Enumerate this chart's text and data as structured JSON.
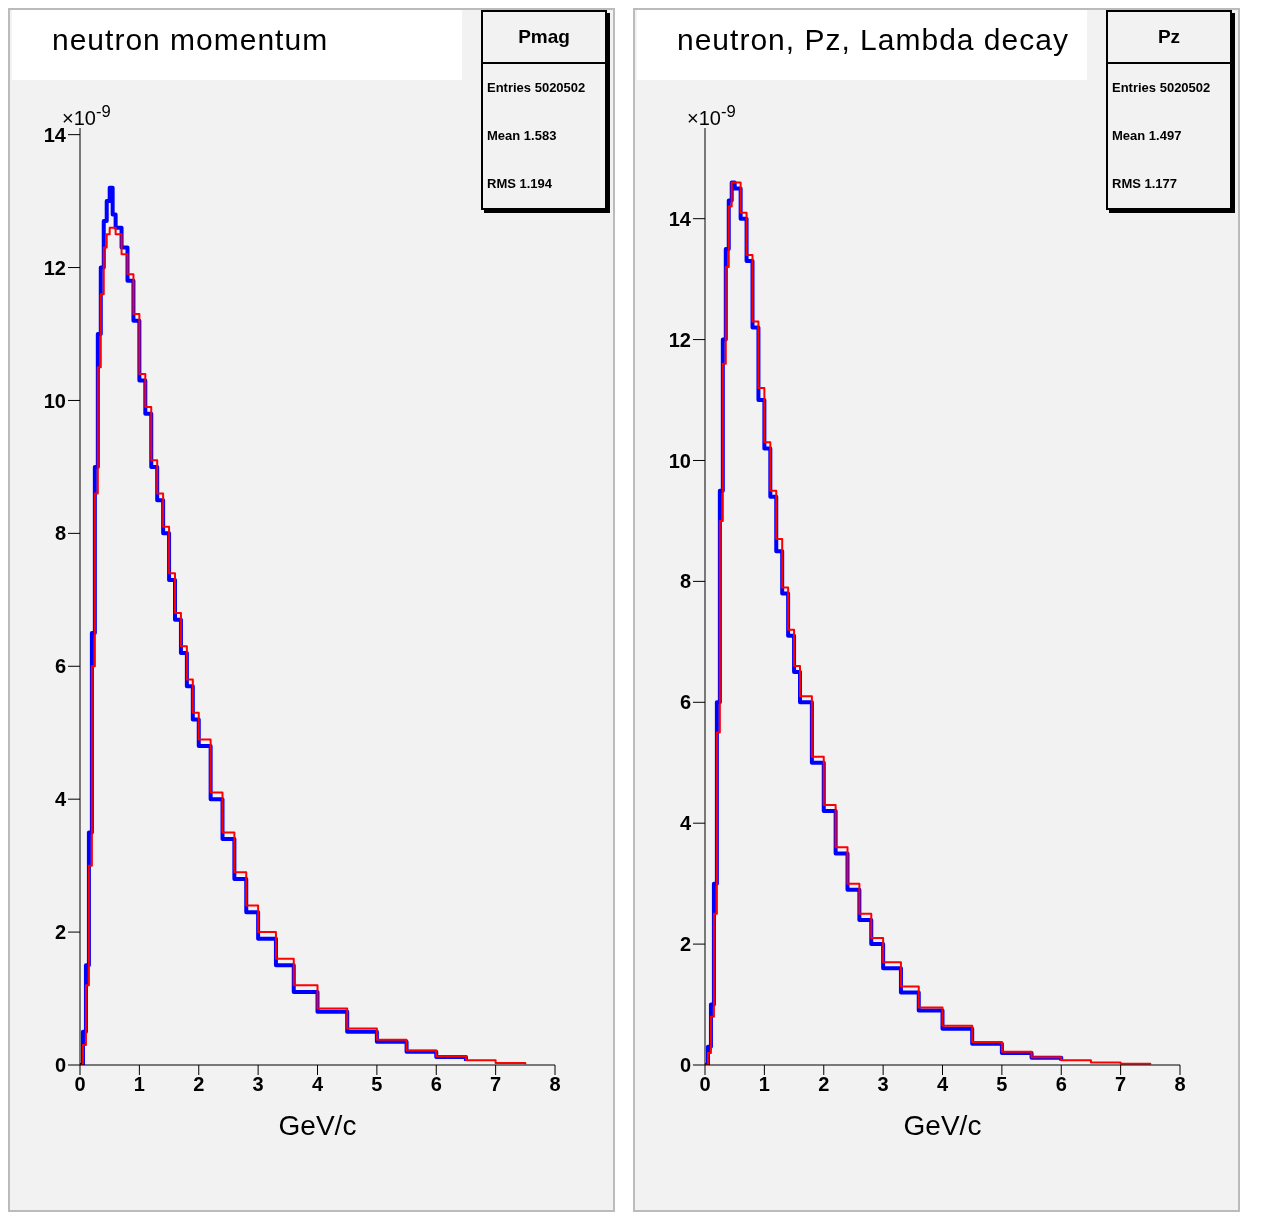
{
  "chart_data": [
    {
      "type": "step",
      "title": "neutron momentum",
      "xlabel": "GeV/c",
      "annotations": [
        "×10$^{-9}$",
        "Pmag",
        "Entries 5020502",
        "Mean 1.583",
        "RMS 1.194"
      ],
      "x": [
        0,
        0.05,
        0.1,
        0.15,
        0.2,
        0.25,
        0.3,
        0.35,
        0.4,
        0.45,
        0.5,
        0.55,
        0.6,
        0.7,
        0.8,
        0.9,
        1.0,
        1.1,
        1.2,
        1.3,
        1.4,
        1.5,
        1.6,
        1.7,
        1.8,
        1.9,
        2.0,
        2.2,
        2.4,
        2.6,
        2.8,
        3.0,
        3.3,
        3.6,
        4.0,
        4.5,
        5.0,
        5.5,
        6.0,
        6.5,
        7.0,
        7.5
      ],
      "series": [
        {
          "color": "#0000ff",
          "values": [
            0,
            0.5,
            1.5,
            3.5,
            6.5,
            9,
            11,
            12,
            12.7,
            13,
            13.2,
            12.8,
            12.6,
            12.3,
            11.8,
            11.2,
            10.3,
            9.8,
            9.0,
            8.5,
            8.0,
            7.3,
            6.7,
            6.2,
            5.7,
            5.2,
            4.8,
            4.0,
            3.4,
            2.8,
            2.3,
            1.9,
            1.5,
            1.1,
            0.8,
            0.5,
            0.35,
            0.2,
            0.12,
            0.06,
            null,
            null
          ]
        },
        {
          "color": "#ff0000",
          "values": [
            0,
            0.3,
            1.2,
            3,
            6,
            8.6,
            10.5,
            11.6,
            12.3,
            12.5,
            12.6,
            12.6,
            12.5,
            12.2,
            11.9,
            11.3,
            10.4,
            9.9,
            9.1,
            8.6,
            8.1,
            7.4,
            6.8,
            6.3,
            5.8,
            5.3,
            4.9,
            4.1,
            3.5,
            2.9,
            2.4,
            2.0,
            1.6,
            1.2,
            0.85,
            0.55,
            0.38,
            0.22,
            0.13,
            0.07,
            0.03,
            0.01
          ]
        }
      ],
      "xlim": [
        0,
        8
      ],
      "xticks": [
        0,
        1,
        2,
        3,
        4,
        5,
        6,
        7,
        8
      ],
      "ylim": [
        0,
        14.1
      ],
      "yticks": [
        0,
        2,
        4,
        6,
        8,
        10,
        12,
        14
      ]
    },
    {
      "type": "step",
      "title": "neutron, Pz, Lambda decay",
      "xlabel": "GeV/c",
      "annotations": [
        "×10$^{-9}$",
        "Pz",
        "Entries 5020502",
        "Mean 1.497",
        "RMS 1.177"
      ],
      "x": [
        0,
        0.05,
        0.1,
        0.15,
        0.2,
        0.25,
        0.3,
        0.35,
        0.4,
        0.45,
        0.5,
        0.6,
        0.7,
        0.8,
        0.9,
        1.0,
        1.1,
        1.2,
        1.3,
        1.4,
        1.5,
        1.6,
        1.8,
        2.0,
        2.2,
        2.4,
        2.6,
        2.8,
        3.0,
        3.3,
        3.6,
        4.0,
        4.5,
        5.0,
        5.5,
        6.0,
        6.5,
        7.0,
        7.5
      ],
      "series": [
        {
          "color": "#0000ff",
          "values": [
            0,
            0.3,
            1,
            3,
            6,
            9.5,
            12,
            13.5,
            14.3,
            14.6,
            14.5,
            14,
            13.3,
            12.2,
            11,
            10.2,
            9.4,
            8.5,
            7.8,
            7.1,
            6.5,
            6.0,
            5.0,
            4.2,
            3.5,
            2.9,
            2.4,
            2.0,
            1.6,
            1.2,
            0.9,
            0.6,
            0.35,
            0.2,
            0.12,
            0.07,
            null,
            null,
            null
          ]
        },
        {
          "color": "#ff0000",
          "values": [
            0,
            0.2,
            0.8,
            2.5,
            5.5,
            9,
            11.6,
            13.2,
            14.2,
            14.6,
            14.6,
            14.1,
            13.4,
            12.3,
            11.2,
            10.3,
            9.5,
            8.7,
            7.9,
            7.2,
            6.6,
            6.1,
            5.1,
            4.3,
            3.6,
            3.0,
            2.5,
            2.1,
            1.7,
            1.3,
            0.95,
            0.65,
            0.38,
            0.22,
            0.13,
            0.08,
            0.04,
            0.02,
            0.01
          ]
        }
      ],
      "xlim": [
        0,
        8
      ],
      "xticks": [
        0,
        1,
        2,
        3,
        4,
        5,
        6,
        7,
        8
      ],
      "ylim": [
        0,
        15.5
      ],
      "yticks": [
        0,
        2,
        4,
        6,
        8,
        10,
        12,
        14
      ]
    }
  ]
}
